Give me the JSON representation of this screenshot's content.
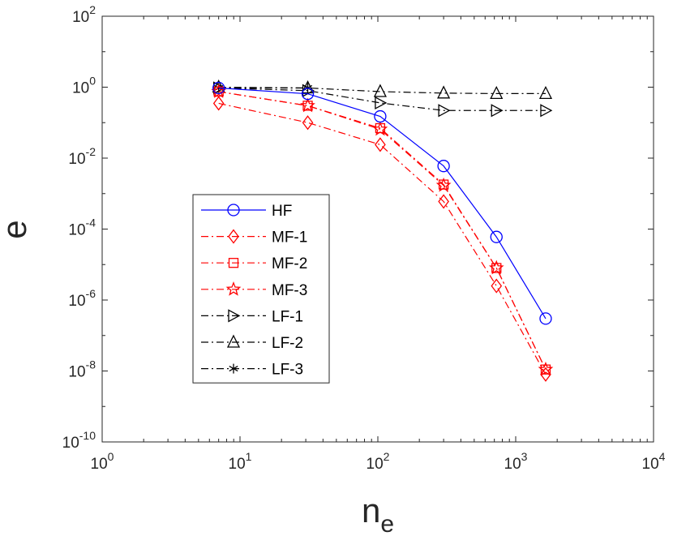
{
  "chart_data": {
    "type": "line",
    "scale": {
      "x": "log",
      "y": "log"
    },
    "xlabel": {
      "base": "n",
      "sub": "e"
    },
    "ylabel": "e",
    "xlim": [
      1,
      10000
    ],
    "ylim": [
      1e-10,
      100
    ],
    "x_ticks": [
      {
        "value": 1,
        "base": "10",
        "exp": "0"
      },
      {
        "value": 10,
        "base": "10",
        "exp": "1"
      },
      {
        "value": 100,
        "base": "10",
        "exp": "2"
      },
      {
        "value": 1000,
        "base": "10",
        "exp": "3"
      },
      {
        "value": 10000,
        "base": "10",
        "exp": "4"
      }
    ],
    "y_ticks": [
      {
        "value": 1e-10,
        "base": "10",
        "exp": "-10"
      },
      {
        "value": 1e-08,
        "base": "10",
        "exp": "-8"
      },
      {
        "value": 1e-06,
        "base": "10",
        "exp": "-6"
      },
      {
        "value": 0.0001,
        "base": "10",
        "exp": "-4"
      },
      {
        "value": 0.01,
        "base": "10",
        "exp": "-2"
      },
      {
        "value": 1,
        "base": "10",
        "exp": "0"
      },
      {
        "value": 100,
        "base": "10",
        "exp": "2"
      }
    ],
    "legend_position": "center-left",
    "series": [
      {
        "name": "HF",
        "color": "#0000ff",
        "dash": "solid",
        "marker": "circle",
        "x": [
          7,
          31,
          104,
          300,
          725,
          1650
        ],
        "y": [
          0.95,
          0.65,
          0.15,
          0.006,
          6e-05,
          3e-07
        ]
      },
      {
        "name": "MF-1",
        "color": "#ff0000",
        "dash": "dashdot",
        "marker": "diamond",
        "x": [
          7,
          31,
          104,
          300,
          725,
          1650
        ],
        "y": [
          0.35,
          0.1,
          0.024,
          0.0006,
          2.5e-06,
          8e-09
        ]
      },
      {
        "name": "MF-2",
        "color": "#ff0000",
        "dash": "dashdot",
        "marker": "square",
        "x": [
          7,
          31,
          104,
          300,
          725,
          1650
        ],
        "y": [
          0.75,
          0.3,
          0.07,
          0.0018,
          8e-06,
          1.1e-08
        ]
      },
      {
        "name": "MF-3",
        "color": "#ff0000",
        "dash": "dashdot",
        "marker": "star",
        "x": [
          7,
          31,
          104,
          300,
          725,
          1650
        ],
        "y": [
          0.75,
          0.3,
          0.065,
          0.0017,
          8e-06,
          1.1e-08
        ]
      },
      {
        "name": "LF-1",
        "color": "#000000",
        "dash": "dashdot",
        "marker": "triangle-right",
        "x": [
          7,
          31,
          104,
          300,
          725,
          1650
        ],
        "y": [
          0.95,
          0.8,
          0.36,
          0.22,
          0.22,
          0.22
        ]
      },
      {
        "name": "LF-2",
        "color": "#000000",
        "dash": "dashdot",
        "marker": "triangle-up",
        "x": [
          7,
          31,
          104,
          300,
          725,
          1650
        ],
        "y": [
          1.0,
          0.95,
          0.75,
          0.68,
          0.66,
          0.66
        ]
      },
      {
        "name": "LF-3",
        "color": "#000000",
        "dash": "dashdot",
        "marker": "asterisk",
        "x": [
          7,
          31
        ],
        "y": [
          0.95,
          0.95
        ]
      }
    ]
  }
}
